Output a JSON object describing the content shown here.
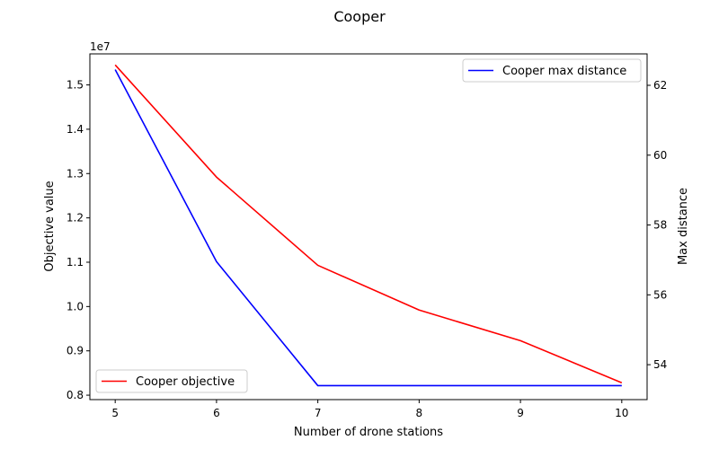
{
  "chart_data": {
    "type": "line",
    "title": "Cooper",
    "xlabel": "Number of drone stations",
    "ylabel_left": "Objective value",
    "ylabel_right": "Max distance",
    "left_axis_multiplier": "1e7",
    "x": [
      5,
      6,
      7,
      8,
      9,
      10
    ],
    "xlim": [
      4.75,
      10.25
    ],
    "x_ticks": [
      5,
      6,
      7,
      8,
      9,
      10
    ],
    "ylim_left": [
      0.79,
      1.57
    ],
    "y_ticks_left": [
      0.8,
      0.9,
      1.0,
      1.1,
      1.2,
      1.3,
      1.4,
      1.5
    ],
    "y_tick_labels_left": [
      "0.8",
      "0.9",
      "1.0",
      "1.1",
      "1.2",
      "1.3",
      "1.4",
      "1.5"
    ],
    "ylim_right": [
      53.0,
      62.9
    ],
    "y_ticks_right": [
      54,
      56,
      58,
      60,
      62
    ],
    "series": [
      {
        "name": "Cooper objective",
        "axis": "left",
        "color": "#ff0000",
        "values": [
          1.545,
          1.292,
          1.093,
          0.992,
          0.923,
          0.828
        ]
      },
      {
        "name": "Cooper max distance",
        "axis": "right",
        "color": "#0000ff",
        "values": [
          62.45,
          56.95,
          53.4,
          53.4,
          53.4,
          53.4
        ]
      }
    ],
    "legend_left_placement": "lower-left",
    "legend_right_placement": "upper-right",
    "grid": false
  }
}
